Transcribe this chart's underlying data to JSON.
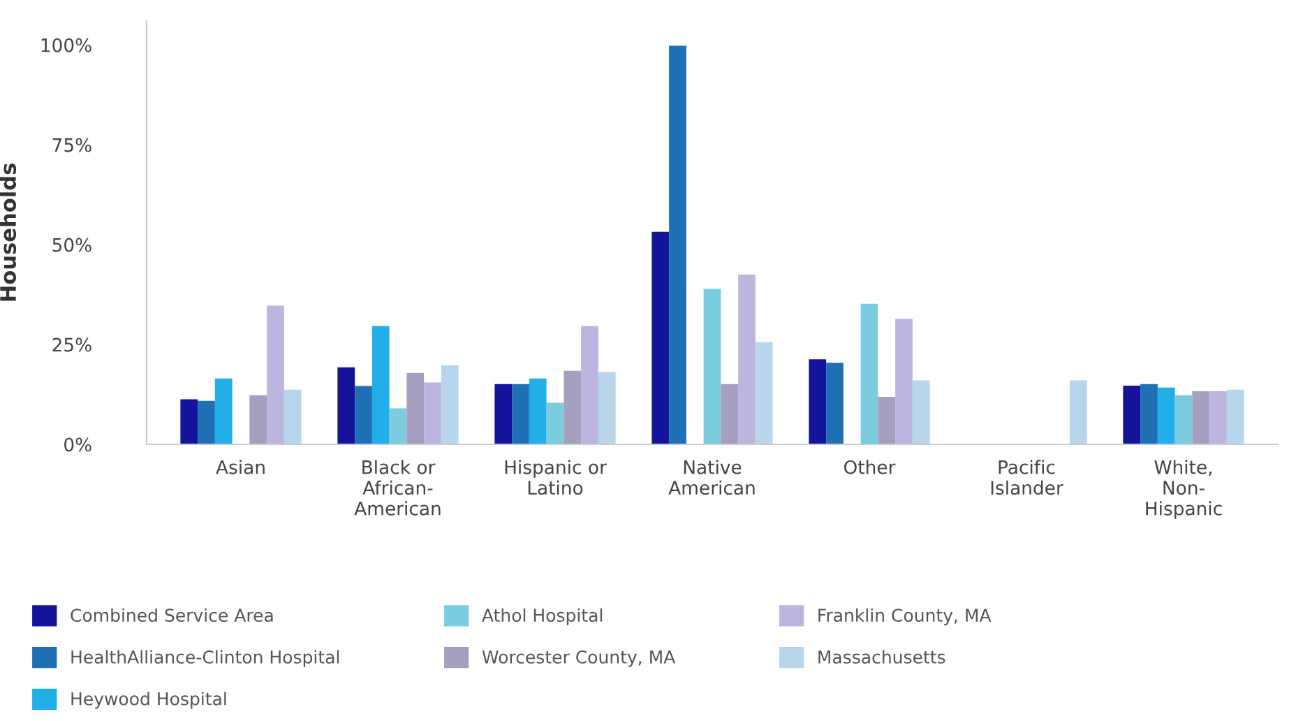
{
  "chart_data": {
    "type": "bar",
    "ylabel": "Households",
    "categories": [
      "Asian",
      "Black or African-American",
      "Hispanic or Latino",
      "Native American",
      "Other",
      "Pacific Islander",
      "White, Non-Hispanic"
    ],
    "series": [
      {
        "name": "Combined Service Area",
        "color": "#14149a",
        "values": [
          11.3,
          19.3,
          15.1,
          53.2,
          21.3,
          null,
          14.7
        ]
      },
      {
        "name": "HealthAlliance-Clinton Hospital",
        "color": "#1f6fb5",
        "values": [
          10.9,
          14.6,
          15.1,
          99.8,
          20.4,
          null,
          15.1
        ]
      },
      {
        "name": "Heywood Hospital",
        "color": "#22aee8",
        "values": [
          16.5,
          29.6,
          16.5,
          null,
          null,
          null,
          14.2
        ]
      },
      {
        "name": "Athol Hospital",
        "color": "#7cccdf",
        "values": [
          null,
          9.0,
          10.4,
          38.9,
          35.2,
          null,
          12.3
        ]
      },
      {
        "name": "Worcester County, MA",
        "color": "#a79fc0",
        "values": [
          12.3,
          17.9,
          18.4,
          15.1,
          11.9,
          null,
          13.3
        ]
      },
      {
        "name": "Franklin County, MA",
        "color": "#bcb5e0",
        "values": [
          34.7,
          15.5,
          29.6,
          42.5,
          31.4,
          null,
          13.3
        ]
      },
      {
        "name": "Massachusetts",
        "color": "#b7d6ec",
        "values": [
          13.7,
          19.8,
          18.1,
          25.6,
          16.0,
          16.0,
          13.7
        ]
      }
    ],
    "ylim": [
      0,
      106
    ],
    "yticks": [
      {
        "value": 0,
        "label": "0%"
      },
      {
        "value": 25,
        "label": "25%"
      },
      {
        "value": 50,
        "label": "50%"
      },
      {
        "value": 75,
        "label": "75%"
      },
      {
        "value": 100,
        "label": "100%"
      }
    ],
    "grid": false,
    "legend": "bottom"
  }
}
